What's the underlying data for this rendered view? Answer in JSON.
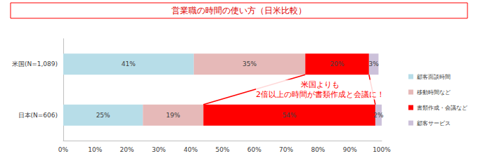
{
  "chart_data": {
    "type": "bar",
    "title": "営業職の時間の使い方（日米比較）",
    "orientation": "horizontal",
    "stacked": true,
    "data_labels": true,
    "grid": false,
    "legend": "right",
    "categories": [
      "米国(N=1,089)",
      "日本(N=606)"
    ],
    "series": [
      {
        "name": "顧客面談時間",
        "color": "#b7dde8",
        "values": [
          41,
          25
        ],
        "value_labels": [
          "41%",
          "25%"
        ]
      },
      {
        "name": "移動時間など",
        "color": "#e6b9b8",
        "values": [
          35,
          19
        ],
        "value_labels": [
          "35%",
          "19%"
        ]
      },
      {
        "name": "書類作成・会議など",
        "color": "#ff0000",
        "values": [
          20,
          54
        ],
        "value_labels": [
          "20%",
          "54%"
        ]
      },
      {
        "name": "顧客サービス",
        "color": "#ccc1da",
        "values": [
          3,
          2
        ],
        "value_labels": [
          "3%",
          "2%"
        ]
      }
    ],
    "xlim": [
      0,
      100
    ],
    "xticks": [
      {
        "value": 0,
        "label": "0%"
      },
      {
        "value": 10,
        "label": "10%"
      },
      {
        "value": 20,
        "label": "20%"
      },
      {
        "value": 30,
        "label": "30%"
      },
      {
        "value": 40,
        "label": "40%"
      },
      {
        "value": 50,
        "label": "50%"
      },
      {
        "value": 60,
        "label": "60%"
      },
      {
        "value": 70,
        "label": "70%"
      },
      {
        "value": 80,
        "label": "80%"
      },
      {
        "value": 90,
        "label": "90%"
      },
      {
        "value": 100,
        "label": "100%"
      }
    ],
    "annotation": {
      "text": "米国よりも\n2倍以上の時間が書類作成と会議に！",
      "series": "書類作成・会議など"
    }
  }
}
